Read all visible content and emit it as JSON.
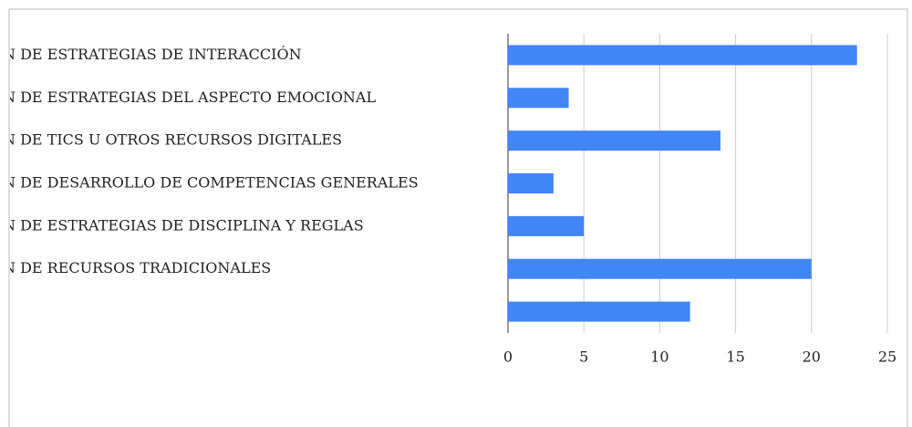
{
  "chart_data": {
    "type": "bar",
    "orientation": "horizontal",
    "categories": [
      "N DE ESTRATEGIAS DE INTERACCIÓN",
      "N DE ESTRATEGIAS DEL ASPECTO EMOCIONAL",
      "N DE TICS U OTROS RECURSOS DIGITALES",
      "N DE DESARROLLO DE COMPETENCIAS GENERALES",
      "N DE ESTRATEGIAS DE DISCIPLINA Y REGLAS",
      "N DE RECURSOS TRADICIONALES",
      null
    ],
    "values": [
      23,
      4,
      14,
      3,
      5,
      20,
      12
    ],
    "color": "#4285f4",
    "xlim": [
      0,
      25
    ],
    "xticks": [
      0,
      5,
      10,
      15,
      20,
      25
    ],
    "grid": true
  }
}
